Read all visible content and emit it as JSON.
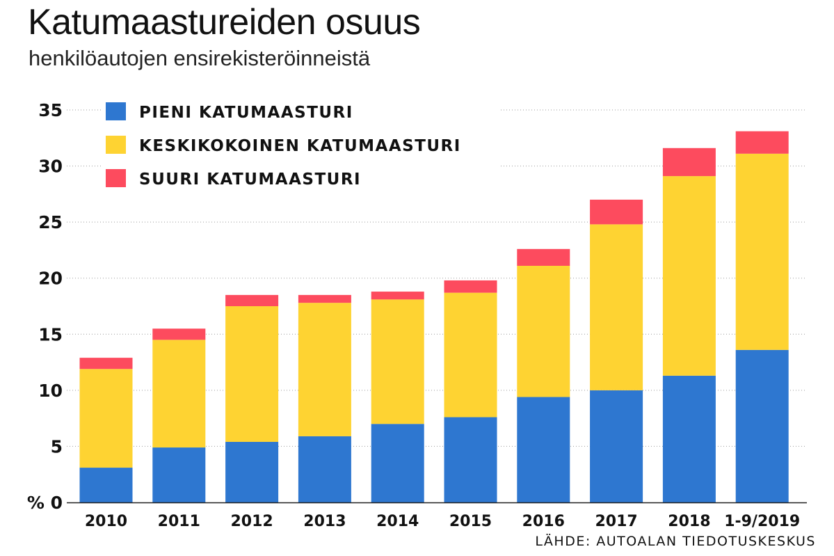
{
  "title": "Katumaastureiden osuus",
  "subtitle": "henkilöautojen ensirekisteröinneistä",
  "source": "LÄHDE: AUTOALAN TIEDOTUSKESKUS",
  "chart_data": {
    "type": "bar",
    "stacked": true,
    "title": "Katumaastureiden osuus",
    "subtitle": "henkilöautojen ensirekisteröinneistä",
    "ylabel": "%",
    "ylim": [
      0,
      35
    ],
    "yticks": [
      0,
      5,
      10,
      15,
      20,
      25,
      30,
      35
    ],
    "ytick_labels": [
      "% 0",
      "5",
      "10",
      "15",
      "20",
      "25",
      "30",
      "35"
    ],
    "grid": "horizontal dotted",
    "legend_position": "top-left",
    "categories": [
      "2010",
      "2011",
      "2012",
      "2013",
      "2014",
      "2015",
      "2016",
      "2017",
      "2018",
      "1-9/2019"
    ],
    "series": [
      {
        "name": "PIENI KATUMAASTURI",
        "color": "#2e77d0",
        "values": [
          3.1,
          4.9,
          5.4,
          5.9,
          7.0,
          7.6,
          9.4,
          10.0,
          11.3,
          13.6
        ]
      },
      {
        "name": "KESKIKOKOINEN KATUMAASTURI",
        "color": "#fed332",
        "values": [
          8.8,
          9.6,
          12.1,
          11.9,
          11.1,
          11.1,
          11.7,
          14.8,
          17.8,
          17.5
        ]
      },
      {
        "name": "SUURI KATUMAASTURI",
        "color": "#fd4b5e",
        "values": [
          1.0,
          1.0,
          1.0,
          0.7,
          0.7,
          1.1,
          1.5,
          2.2,
          2.5,
          2.0
        ]
      }
    ]
  }
}
